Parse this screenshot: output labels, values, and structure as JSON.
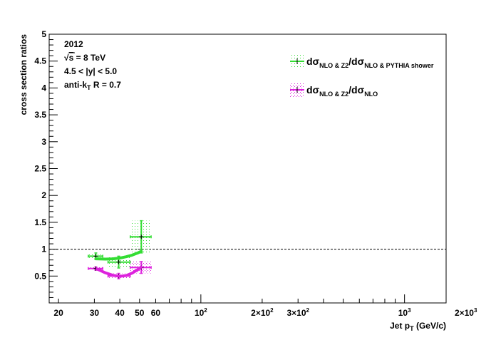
{
  "chart_data": {
    "type": "scatter",
    "title": "",
    "xlabel": "Jet p",
    "xlabel_sub": "T",
    "xlabel_unit": " (GeV/c)",
    "ylabel": "cross section ratios",
    "xscale": "log",
    "xlim": [
      18,
      1600
    ],
    "ylim": [
      0,
      5
    ],
    "yticks": [
      "0.5",
      "1",
      "1.5",
      "2",
      "2.5",
      "3",
      "3.5",
      "4",
      "4.5",
      "5"
    ],
    "ytick_values": [
      0.5,
      1,
      1.5,
      2,
      2.5,
      3,
      3.5,
      4,
      4.5,
      5
    ],
    "xtick_labels": [
      {
        "x": 20,
        "base": "20"
      },
      {
        "x": 30,
        "base": "30"
      },
      {
        "x": 40,
        "base": "40"
      },
      {
        "x": 50,
        "base": "50"
      },
      {
        "x": 60,
        "base": "60"
      },
      {
        "x": 100,
        "base": "10",
        "sup": "2"
      },
      {
        "x": 200,
        "base": "2×10",
        "sup": "2"
      },
      {
        "x": 300,
        "base": "3×10",
        "sup": "2"
      },
      {
        "x": 1000,
        "base": "10",
        "sup": "3"
      },
      {
        "x": 2000,
        "base": "2×10",
        "sup": "3"
      }
    ],
    "reference_line": 1.0,
    "info_text": [
      "2012",
      "√s = 8 TeV",
      "4.5 < |y| < 5.0",
      "anti-k_T R = 0.7"
    ],
    "legend_position": "top-right",
    "series": [
      {
        "label_parts": [
          {
            "t": "dσ"
          },
          {
            "t": "NLO & Z2",
            "sub": true
          },
          {
            "t": "/dσ"
          },
          {
            "t": "NLO & PYTHIA shower",
            "sub": true
          }
        ],
        "color": "#33dd33",
        "points": [
          {
            "x": 30.5,
            "y": 0.87,
            "xerr": [
              28.0,
              33.0
            ],
            "yerr": [
              0.81,
              0.93
            ]
          },
          {
            "x": 39.5,
            "y": 0.76,
            "xerr": [
              35.0,
              45.0
            ],
            "yerr": [
              0.65,
              0.87
            ]
          },
          {
            "x": 51.0,
            "y": 1.23,
            "xerr": [
              45.0,
              57.0
            ],
            "yerr": [
              0.93,
              1.53
            ]
          }
        ],
        "fit": {
          "x": [
            30.5,
            34,
            37,
            40,
            43,
            46,
            49,
            51
          ],
          "y": [
            0.82,
            0.815,
            0.82,
            0.835,
            0.86,
            0.89,
            0.93,
            0.96
          ]
        }
      },
      {
        "label_parts": [
          {
            "t": "dσ"
          },
          {
            "t": "NLO & Z2",
            "sub": true
          },
          {
            "t": "/dσ"
          },
          {
            "t": "NLO",
            "sub": true
          }
        ],
        "color": "#dd22dd",
        "points": [
          {
            "x": 30.5,
            "y": 0.64,
            "xerr": [
              28.0,
              33.0
            ],
            "yerr": [
              0.61,
              0.67
            ]
          },
          {
            "x": 39.5,
            "y": 0.5,
            "xerr": [
              35.0,
              45.0
            ],
            "yerr": [
              0.45,
              0.55
            ]
          },
          {
            "x": 51.0,
            "y": 0.66,
            "xerr": [
              45.0,
              57.0
            ],
            "yerr": [
              0.55,
              0.77
            ]
          }
        ],
        "fit": {
          "x": [
            31,
            34,
            37,
            40,
            43,
            46,
            49,
            51
          ],
          "y": [
            0.63,
            0.56,
            0.515,
            0.495,
            0.51,
            0.555,
            0.62,
            0.67
          ]
        }
      }
    ]
  }
}
